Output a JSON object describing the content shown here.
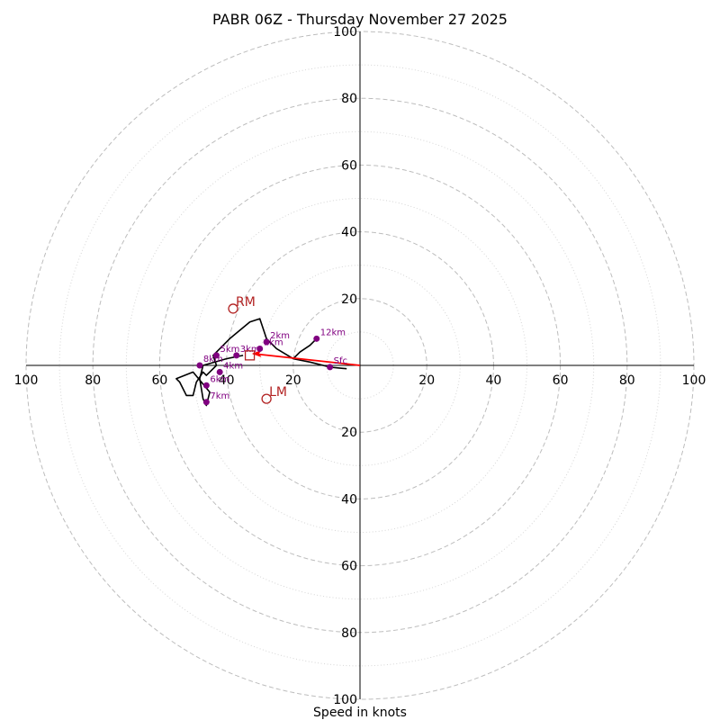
{
  "chart_data": {
    "type": "scatter",
    "subtype": "hodograph",
    "title": "PABR 06Z - Thursday November 27 2025",
    "xlabel": "Speed in knots",
    "ylabel": "",
    "xlim": [
      -100,
      100
    ],
    "ylim": [
      -100,
      100
    ],
    "rings_major": [
      20,
      40,
      60,
      80,
      100
    ],
    "rings_minor": [
      10,
      30,
      50,
      70,
      90
    ],
    "tick_labels": {
      "left": [
        "100",
        "80",
        "60",
        "40",
        "20"
      ],
      "right": [
        "20",
        "40",
        "60",
        "80",
        "100"
      ],
      "top": [
        "20",
        "40",
        "60",
        "80",
        "100"
      ],
      "bottom": [
        "20",
        "40",
        "60",
        "80",
        "100"
      ]
    },
    "tick_values": [
      20,
      40,
      60,
      80,
      100
    ],
    "trace_color": "#000000",
    "point_color": "#800080",
    "motion_color": "#b22222",
    "shear_color": "#ff0000",
    "trace": [
      [
        -4,
        -1
      ],
      [
        -9,
        -0.5
      ],
      [
        -15,
        1
      ],
      [
        -20,
        2
      ],
      [
        -25,
        5
      ],
      [
        -28,
        8
      ],
      [
        -30,
        14
      ],
      [
        -33,
        13
      ],
      [
        -39,
        8
      ],
      [
        -44,
        3
      ],
      [
        -43,
        0
      ],
      [
        -46,
        -3
      ],
      [
        -47,
        -2
      ],
      [
        -49,
        -5
      ],
      [
        -50,
        -9
      ],
      [
        -52,
        -9
      ],
      [
        -54,
        -5
      ],
      [
        -55,
        -4
      ],
      [
        -50,
        -2
      ],
      [
        -45,
        -8
      ],
      [
        -46,
        -12
      ],
      [
        -47,
        -10
      ],
      [
        -48,
        -4
      ],
      [
        -47,
        0
      ],
      [
        -40,
        2
      ],
      [
        -35,
        3
      ]
    ],
    "trace_upper": [
      [
        -20,
        2
      ],
      [
        -18,
        4
      ],
      [
        -15,
        6
      ],
      [
        -13,
        8
      ]
    ],
    "height_points": [
      {
        "label": "Sfc",
        "u": -9,
        "v": -0.5
      },
      {
        "label": "1km",
        "u": -30,
        "v": 5
      },
      {
        "label": "2km",
        "u": -28,
        "v": 7
      },
      {
        "label": "3km",
        "u": -37,
        "v": 3
      },
      {
        "label": "4km",
        "u": -42,
        "v": -2
      },
      {
        "label": "5km",
        "u": -43,
        "v": 3
      },
      {
        "label": "6km",
        "u": -46,
        "v": -6
      },
      {
        "label": "7km",
        "u": -46,
        "v": -11
      },
      {
        "label": "8km",
        "u": -48,
        "v": 0
      },
      {
        "label": "12km",
        "u": -13,
        "v": 8
      }
    ],
    "motion_points": [
      {
        "label": "RM",
        "u": -38,
        "v": 17,
        "marker": "circle"
      },
      {
        "label": "LM",
        "u": -28,
        "v": -10,
        "marker": "circle"
      },
      {
        "label": "",
        "u": -33,
        "v": 3,
        "marker": "square"
      }
    ],
    "shear_vector": {
      "from": [
        0,
        0
      ],
      "to": [
        -32,
        3.5
      ]
    }
  }
}
